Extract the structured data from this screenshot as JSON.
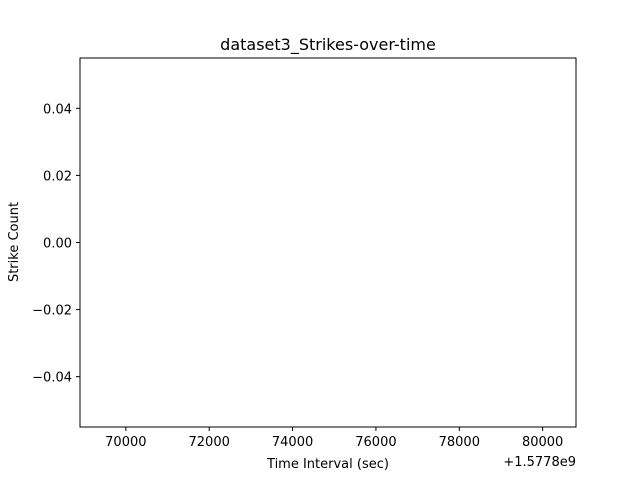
{
  "chart_data": {
    "type": "line",
    "title": "dataset3_Strikes-over-time",
    "xlabel": "Time Interval (sec)",
    "ylabel": "Strike Count",
    "x_offset_label": "+1.5778e9",
    "xlim": [
      68900,
      80800
    ],
    "ylim": [
      -0.055,
      0.055
    ],
    "x_ticks": [
      {
        "value": 70000,
        "label": "70000"
      },
      {
        "value": 72000,
        "label": "72000"
      },
      {
        "value": 74000,
        "label": "74000"
      },
      {
        "value": 76000,
        "label": "76000"
      },
      {
        "value": 78000,
        "label": "78000"
      },
      {
        "value": 80000,
        "label": "80000"
      }
    ],
    "y_ticks": [
      {
        "value": 0.04,
        "label": "0.04"
      },
      {
        "value": 0.02,
        "label": "0.02"
      },
      {
        "value": 0.0,
        "label": "0.00"
      },
      {
        "value": -0.02,
        "label": "−0.02"
      },
      {
        "value": -0.04,
        "label": "−0.04"
      }
    ],
    "series": [
      {
        "x": [],
        "y": []
      }
    ],
    "grid": false,
    "legend": "none"
  }
}
